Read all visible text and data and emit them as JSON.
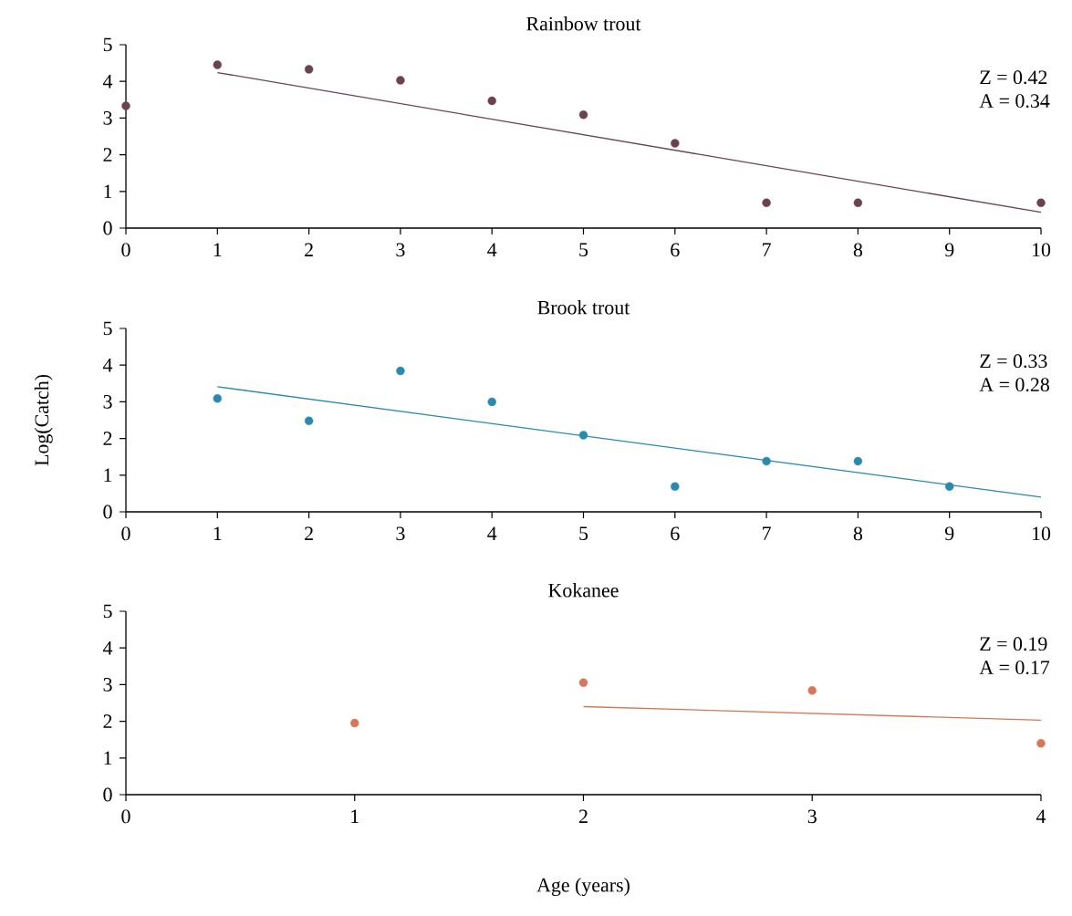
{
  "chart_data": [
    {
      "type": "scatter",
      "title": "Rainbow trout",
      "x": [
        0,
        1,
        2,
        3,
        4,
        5,
        6,
        7,
        8,
        10
      ],
      "xlim": [
        0,
        10
      ],
      "xticks": [
        0,
        1,
        2,
        3,
        4,
        5,
        6,
        7,
        8,
        9,
        10
      ],
      "ylim": [
        0,
        5
      ],
      "yticks": [
        0,
        1,
        2,
        3,
        4,
        5
      ],
      "annotations": [
        "Z =  0.42",
        "A = 0.34"
      ],
      "series": [
        {
          "marker": "circle",
          "color": "#6b4250",
          "values": [
            3.33,
            4.45,
            4.33,
            4.03,
            3.47,
            3.09,
            2.31,
            0.69,
            0.69,
            0.69
          ]
        },
        {
          "type": "line",
          "marker": "none",
          "color": "#6b4250",
          "x": [
            1,
            10
          ],
          "values": [
            4.24,
            0.43
          ]
        }
      ]
    },
    {
      "type": "scatter",
      "title": "Brook trout",
      "ylabel": "Log(Catch)",
      "x": [
        1,
        2,
        3,
        4,
        5,
        6,
        7,
        8,
        9
      ],
      "xlim": [
        0,
        10
      ],
      "xticks": [
        0,
        1,
        2,
        3,
        4,
        5,
        6,
        7,
        8,
        9,
        10
      ],
      "ylim": [
        0,
        5
      ],
      "yticks": [
        0,
        1,
        2,
        3,
        4,
        5
      ],
      "annotations": [
        "Z =  0.33",
        "A = 0.28"
      ],
      "series": [
        {
          "marker": "circle",
          "color": "#2a8aad",
          "values": [
            3.09,
            2.48,
            3.84,
            3.0,
            2.09,
            0.69,
            1.38,
            1.38,
            0.69
          ]
        },
        {
          "type": "line",
          "marker": "none",
          "color": "#2a8aad",
          "x": [
            1,
            10
          ],
          "values": [
            3.41,
            0.4
          ]
        }
      ]
    },
    {
      "type": "scatter",
      "title": "Kokanee",
      "xlabel": "Age (years)",
      "x": [
        1,
        2,
        3,
        4
      ],
      "xlim": [
        0,
        4
      ],
      "xticks": [
        0,
        1,
        2,
        3,
        4
      ],
      "ylim": [
        0,
        5
      ],
      "yticks": [
        0,
        1,
        2,
        3,
        4,
        5
      ],
      "annotations": [
        "Z =  0.19",
        "A = 0.17"
      ],
      "series": [
        {
          "marker": "circle",
          "color": "#d4775a",
          "values": [
            1.95,
            3.05,
            2.84,
            1.4
          ]
        },
        {
          "type": "line",
          "marker": "none",
          "color": "#d4775a",
          "x": [
            2,
            4
          ],
          "values": [
            2.4,
            2.03
          ]
        }
      ]
    }
  ]
}
